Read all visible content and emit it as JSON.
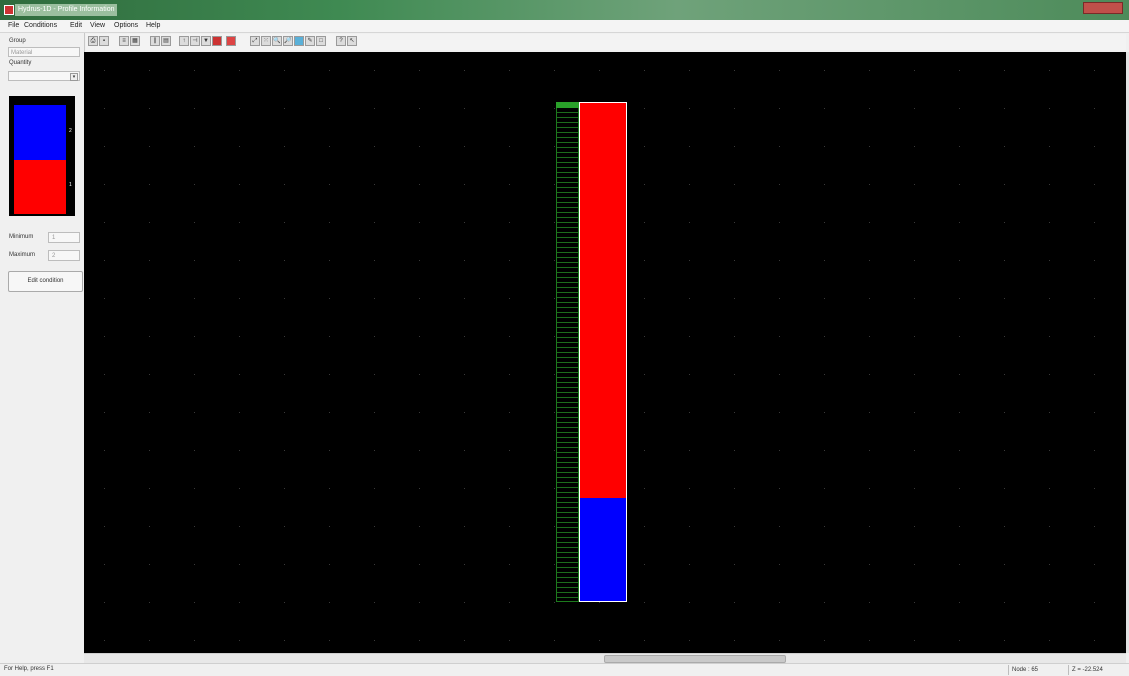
{
  "window": {
    "title": "Hydrus-1D - Profile Information",
    "close_icon": "close-icon"
  },
  "menu": {
    "items": [
      {
        "label": "File"
      },
      {
        "label": "Conditions"
      },
      {
        "label": "Edit"
      },
      {
        "label": "View"
      },
      {
        "label": "Options"
      },
      {
        "label": "Help"
      }
    ]
  },
  "sidebar": {
    "group_label": "Group",
    "group_value": "Material",
    "quantity_label": "Quantity",
    "quantity_value": "",
    "legend": {
      "ticks": [
        "2",
        "1"
      ],
      "colors": [
        "#0000ff",
        "#ff0000"
      ]
    },
    "minimum_label": "Minimum",
    "minimum_value": "1",
    "maximum_label": "Maximum",
    "maximum_value": "2",
    "edit_button": "Edit condition"
  },
  "toolbar": {
    "icons": [
      "print-icon",
      "save-icon",
      "list-icon",
      "grid-icon",
      "column-icon",
      "material-icon",
      "observation-icon",
      "root-icon",
      "down-arrow-icon",
      "red-block-icon",
      "red-bar-icon",
      "zoom-extents-icon",
      "grid-points-icon",
      "zoom-in-icon",
      "zoom-out-icon",
      "zoom-window-icon",
      "pencil-icon",
      "selection-icon",
      "help-icon",
      "context-help-icon"
    ]
  },
  "profile": {
    "material_1_color": "#ff0000",
    "material_2_color": "#0000ff",
    "mesh_color": "#1c7a1c"
  },
  "status": {
    "help_text": "For Help, press F1",
    "node": "Node : 65",
    "z": "Z = -22.524"
  }
}
